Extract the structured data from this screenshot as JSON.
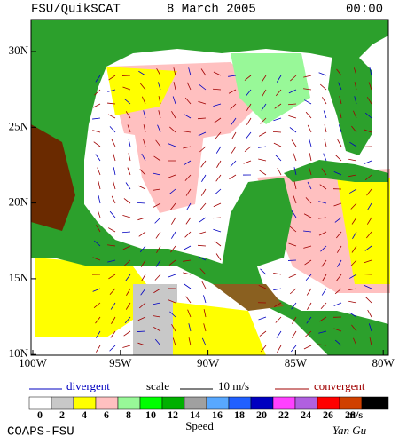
{
  "header": {
    "title": "FSU/QuikSCAT",
    "date": "8 March 2005",
    "time": "00:00"
  },
  "axes": {
    "latitude": [
      "30N",
      "25N",
      "20N",
      "15N",
      "10N"
    ],
    "longitude": [
      "100W",
      "95W",
      "90W",
      "85W",
      "80W"
    ]
  },
  "legend": {
    "divergent": "divergent",
    "scale": "scale",
    "scale_value": "10 m/s",
    "convergent": "convergent"
  },
  "colorbar": {
    "labels": [
      0,
      2,
      4,
      6,
      8,
      10,
      12,
      14,
      16,
      18,
      20,
      22,
      24,
      26,
      28
    ],
    "colors": [
      "#ffffff",
      "#c8c8c8",
      "#ffff00",
      "#ffc0c0",
      "#98f898",
      "#00ff00",
      "#00b000",
      "#a0a0a0",
      "#58a8ff",
      "#2060ff",
      "#0000c0",
      "#ff40ff",
      "#b060e0",
      "#ff0000",
      "#d04000",
      "#000000"
    ],
    "unit": "m/s",
    "title": "Speed"
  },
  "footer": {
    "credit": "COAPS-FSU",
    "author": "Yan Gu"
  }
}
